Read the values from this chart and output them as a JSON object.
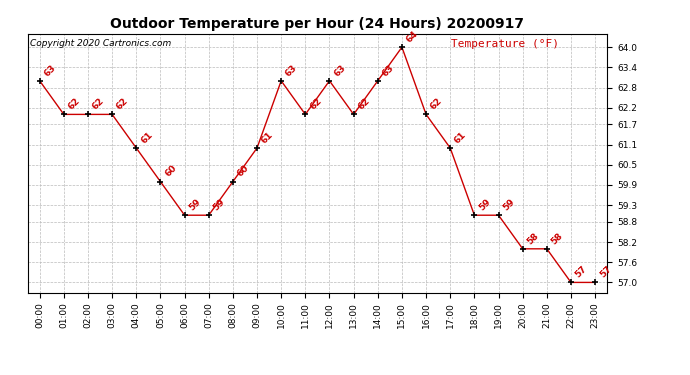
{
  "title": "Outdoor Temperature per Hour (24 Hours) 20200917",
  "copyright_text": "Copyright 2020 Cartronics.com",
  "legend_label": "Temperature (°F)",
  "hours": [
    "00:00",
    "01:00",
    "02:00",
    "03:00",
    "04:00",
    "05:00",
    "06:00",
    "07:00",
    "08:00",
    "09:00",
    "10:00",
    "11:00",
    "12:00",
    "13:00",
    "14:00",
    "15:00",
    "16:00",
    "17:00",
    "18:00",
    "19:00",
    "20:00",
    "21:00",
    "22:00",
    "23:00"
  ],
  "temps": [
    63,
    62,
    62,
    62,
    61,
    60,
    59,
    59,
    60,
    61,
    63,
    62,
    63,
    62,
    63,
    64,
    62,
    61,
    59,
    59,
    58,
    58,
    57,
    57
  ],
  "line_color": "#cc0000",
  "marker_color": "#000000",
  "label_color": "#cc0000",
  "title_color": "#000000",
  "copyright_color": "#000000",
  "legend_color": "#cc0000",
  "background_color": "#ffffff",
  "grid_color": "#bbbbbb",
  "ytick_labels": [
    57.0,
    57.6,
    58.2,
    58.8,
    59.3,
    59.9,
    60.5,
    61.1,
    61.7,
    62.2,
    62.8,
    63.4,
    64.0
  ],
  "ylim": [
    56.7,
    64.4
  ],
  "title_fontsize": 10,
  "axis_fontsize": 6.5,
  "label_fontsize": 6.5,
  "copyright_fontsize": 6.5,
  "legend_fontsize": 8
}
